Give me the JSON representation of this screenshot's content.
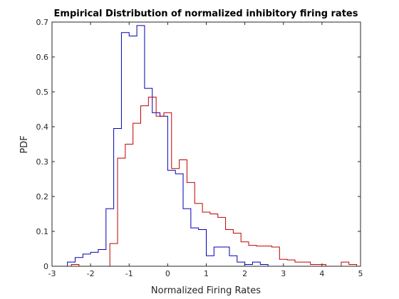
{
  "chart_data": {
    "type": "histogram",
    "title": "Empirical Distribution of normalized inhibitory firing rates",
    "xlabel": "Normalized Firing Rates",
    "ylabel": "PDF",
    "xlim": [
      -3,
      5
    ],
    "ylim": [
      0,
      0.7
    ],
    "xticks": [
      -3,
      -2,
      -1,
      0,
      1,
      2,
      3,
      4,
      5
    ],
    "yticks": [
      0,
      0.1,
      0.2,
      0.3,
      0.4,
      0.5,
      0.6,
      0.7
    ],
    "grid": false,
    "legend": "none",
    "series": [
      {
        "color": "#0000b3",
        "bin_edges": [
          -2.6,
          -2.4,
          -2.2,
          -2.0,
          -1.8,
          -1.6,
          -1.4,
          -1.2,
          -1.0,
          -0.8,
          -0.6,
          -0.4,
          -0.2,
          0.0,
          0.2,
          0.4,
          0.6,
          0.8,
          1.0,
          1.2,
          1.4,
          1.6,
          1.8,
          2.0,
          2.2,
          2.4,
          2.6
        ],
        "values": [
          0.012,
          0.025,
          0.035,
          0.04,
          0.048,
          0.165,
          0.395,
          0.67,
          0.66,
          0.69,
          0.51,
          0.44,
          0.43,
          0.275,
          0.265,
          0.165,
          0.11,
          0.105,
          0.03,
          0.055,
          0.055,
          0.03,
          0.012,
          0.005,
          0.012,
          0.005
        ]
      },
      {
        "color": "#c00000",
        "bin_edges": [
          -2.5,
          -2.3,
          -2.1,
          -1.9,
          -1.7,
          -1.5,
          -1.3,
          -1.1,
          -0.9,
          -0.7,
          -0.5,
          -0.3,
          -0.1,
          0.1,
          0.3,
          0.5,
          0.7,
          0.9,
          1.1,
          1.3,
          1.5,
          1.7,
          1.9,
          2.1,
          2.3,
          2.5,
          2.7,
          2.9,
          3.1,
          3.3,
          3.5,
          3.7,
          3.9,
          4.1,
          4.3,
          4.5,
          4.7,
          4.9
        ],
        "values": [
          0.005,
          0.0,
          0.0,
          0.0,
          0.0,
          0.065,
          0.31,
          0.35,
          0.41,
          0.46,
          0.485,
          0.43,
          0.44,
          0.28,
          0.305,
          0.24,
          0.18,
          0.155,
          0.15,
          0.14,
          0.105,
          0.095,
          0.07,
          0.06,
          0.058,
          0.058,
          0.055,
          0.02,
          0.018,
          0.012,
          0.012,
          0.005,
          0.005,
          0.0,
          0.0,
          0.012,
          0.005
        ]
      }
    ]
  }
}
